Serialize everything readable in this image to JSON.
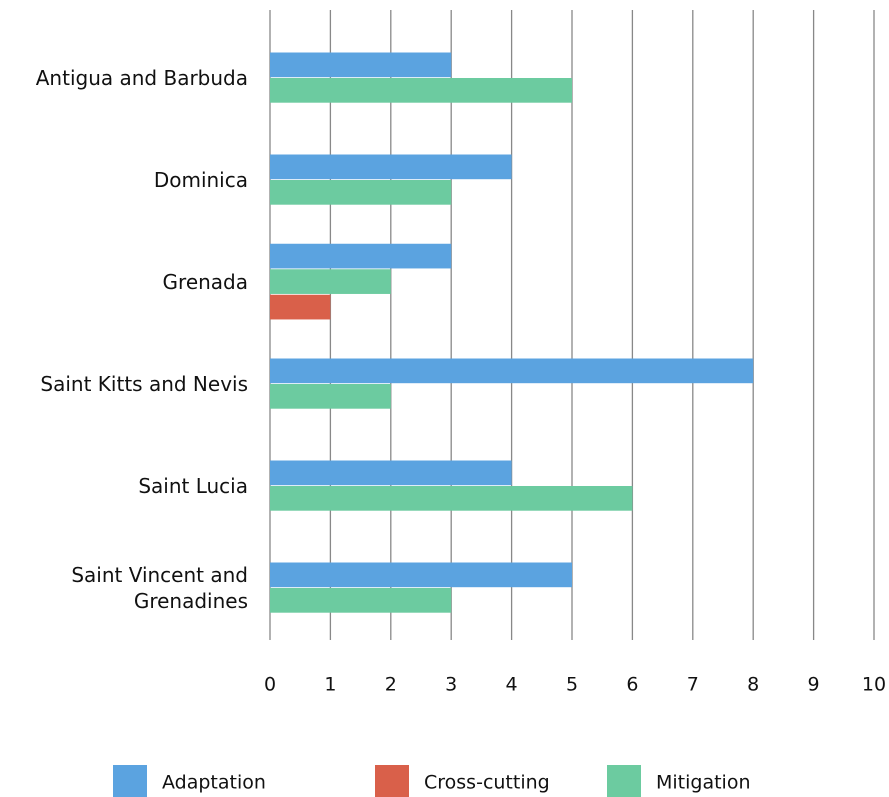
{
  "chart_data": {
    "type": "bar",
    "orientation": "horizontal",
    "categories": [
      "Antigua and Barbuda",
      "Dominica",
      "Grenada",
      "Saint Kitts and Nevis",
      "Saint Lucia",
      "Saint Vincent and Grenadines"
    ],
    "series": [
      {
        "name": "Adaptation",
        "color": "#5ba3e0",
        "values": [
          3,
          4,
          3,
          8,
          4,
          5
        ]
      },
      {
        "name": "Cross-cutting",
        "color": "#d9604a",
        "values": [
          null,
          null,
          1,
          null,
          null,
          null
        ]
      },
      {
        "name": "Mitigation",
        "color": "#6ccba0",
        "values": [
          5,
          3,
          2,
          2,
          6,
          3
        ]
      }
    ],
    "xlim": [
      0,
      10
    ],
    "xticks": [
      0,
      1,
      2,
      3,
      4,
      5,
      6,
      7,
      8,
      9,
      10
    ],
    "grid": true
  }
}
